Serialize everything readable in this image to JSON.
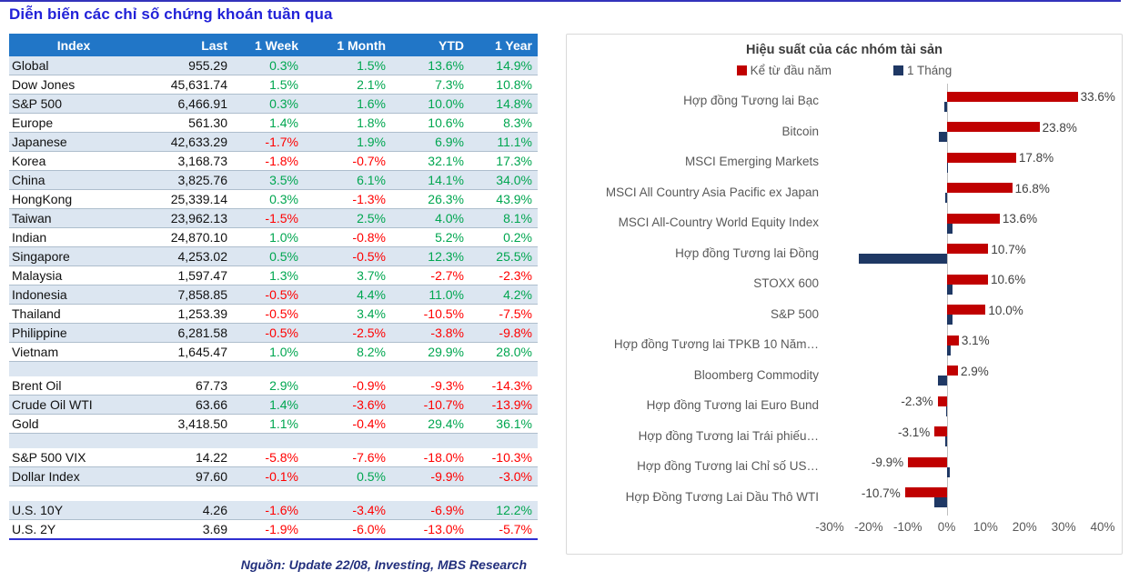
{
  "page": {
    "title": "Diễn biến các chỉ số chứng khoán tuần qua",
    "source_note": "Nguồn: Update 22/08, Investing, MBS Research"
  },
  "colors": {
    "title_blue": "#2222d8",
    "top_line_blue": "#3333bb",
    "table_header_bg": "#2176c7",
    "table_header_text": "#ffffff",
    "row_stripe": "#dce6f1",
    "row_white": "#ffffff",
    "positive_green": "#00a650",
    "negative_red": "#ff0000",
    "bar_red": "#c00000",
    "bar_navy": "#1f3864",
    "chart_border": "#d9d9d9",
    "chart_label_gray": "#595959",
    "source_note_blue": "#23307d",
    "table_bottom_line": "#2e2ed0"
  },
  "chart_data": [
    {
      "type": "table",
      "headers": [
        "Index",
        "Last",
        "1 Week",
        "1 Month",
        "YTD",
        "1 Year"
      ],
      "rows": [
        [
          "Global",
          "955.29",
          "0.3%",
          "1.5%",
          "13.6%",
          "14.9%"
        ],
        [
          "Dow Jones",
          "45,631.74",
          "1.5%",
          "2.1%",
          "7.3%",
          "10.8%"
        ],
        [
          "S&P 500",
          "6,466.91",
          "0.3%",
          "1.6%",
          "10.0%",
          "14.8%"
        ],
        [
          "Europe",
          "561.30",
          "1.4%",
          "1.8%",
          "10.6%",
          "8.3%"
        ],
        [
          "Japanese",
          "42,633.29",
          "-1.7%",
          "1.9%",
          "6.9%",
          "11.1%"
        ],
        [
          "Korea",
          "3,168.73",
          "-1.8%",
          "-0.7%",
          "32.1%",
          "17.3%"
        ],
        [
          "China",
          "3,825.76",
          "3.5%",
          "6.1%",
          "14.1%",
          "34.0%"
        ],
        [
          "HongKong",
          "25,339.14",
          "0.3%",
          "-1.3%",
          "26.3%",
          "43.9%"
        ],
        [
          "Taiwan",
          "23,962.13",
          "-1.5%",
          "2.5%",
          "4.0%",
          "8.1%"
        ],
        [
          "Indian",
          "24,870.10",
          "1.0%",
          "-0.8%",
          "5.2%",
          "0.2%"
        ],
        [
          "Singapore",
          "4,253.02",
          "0.5%",
          "-0.5%",
          "12.3%",
          "25.5%"
        ],
        [
          "Malaysia",
          "1,597.47",
          "1.3%",
          "3.7%",
          "-2.7%",
          "-2.3%"
        ],
        [
          "Indonesia",
          "7,858.85",
          "-0.5%",
          "4.4%",
          "11.0%",
          "4.2%"
        ],
        [
          "Thailand",
          "1,253.39",
          "-0.5%",
          "3.4%",
          "-10.5%",
          "-7.5%"
        ],
        [
          "Philippine",
          "6,281.58",
          "-0.5%",
          "-2.5%",
          "-3.8%",
          "-9.8%"
        ],
        [
          "Vietnam",
          "1,645.47",
          "1.0%",
          "8.2%",
          "29.9%",
          "28.0%"
        ],
        null,
        [
          "Brent Oil",
          "67.73",
          "2.9%",
          "-0.9%",
          "-9.3%",
          "-14.3%"
        ],
        [
          "Crude Oil WTI",
          "63.66",
          "1.4%",
          "-3.6%",
          "-10.7%",
          "-13.9%"
        ],
        [
          "Gold",
          "3,418.50",
          "1.1%",
          "-0.4%",
          "29.4%",
          "36.1%"
        ],
        null,
        [
          "S&P 500 VIX",
          "14.22",
          "-5.8%",
          "-7.6%",
          "-18.0%",
          "-10.3%"
        ],
        [
          "Dollar Index",
          "97.60",
          "-0.1%",
          "0.5%",
          "-9.9%",
          "-3.0%"
        ],
        null,
        [
          "U.S. 10Y",
          "4.26",
          "-1.6%",
          "-3.4%",
          "-6.9%",
          "12.2%"
        ],
        [
          "U.S. 2Y",
          "3.69",
          "-1.9%",
          "-6.0%",
          "-13.0%",
          "-5.7%"
        ]
      ]
    },
    {
      "type": "bar",
      "orientation": "horizontal",
      "title": "Hiệu suất của các nhóm tài sản",
      "legend_position": "top",
      "grid": false,
      "xlim": [
        -30,
        40
      ],
      "x_ticks": [
        "-30%",
        "-20%",
        "-10%",
        "0%",
        "10%",
        "20%",
        "30%",
        "40%"
      ],
      "categories": [
        "Hợp đồng Tương lai Bạc",
        "Bitcoin",
        "MSCI Emerging Markets",
        "MSCI All Country Asia Pacific ex Japan",
        "MSCI All-Country World Equity Index",
        "Hợp đồng Tương lai Đồng",
        "STOXX 600",
        "S&P 500",
        "Hợp đồng Tương lai TPKB 10 Năm…",
        "Bloomberg Commodity",
        "Hợp đồng Tương lai Euro Bund",
        "Hợp đồng Tương lai Trái phiếu…",
        "Hợp đồng Tương lai Chỉ số US…",
        "Hợp Đồng Tương Lai Dầu Thô WTI"
      ],
      "series": [
        {
          "name": "Kể từ đầu năm",
          "color": "#c00000",
          "values": [
            33.6,
            23.8,
            17.8,
            16.8,
            13.6,
            10.7,
            10.6,
            10.0,
            3.1,
            2.9,
            -2.3,
            -3.1,
            -9.9,
            -10.7
          ],
          "data_labels": [
            "33.6%",
            "23.8%",
            "17.8%",
            "16.8%",
            "13.6%",
            "10.7%",
            "10.6%",
            "10.0%",
            "3.1%",
            "2.9%",
            "-2.3%",
            "-3.1%",
            "-9.9%",
            "-10.7%"
          ]
        },
        {
          "name": "1 Tháng",
          "color": "#1f3864",
          "values": [
            -0.5,
            -2.0,
            0.2,
            -0.4,
            1.5,
            -22.5,
            1.5,
            1.5,
            1.0,
            -2.3,
            -0.2,
            -0.3,
            0.8,
            -3.2
          ]
        }
      ]
    }
  ]
}
